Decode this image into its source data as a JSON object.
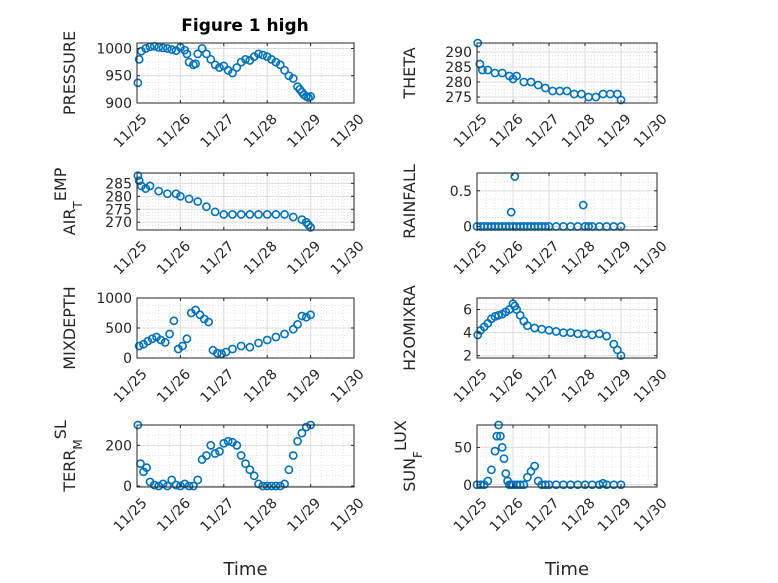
{
  "figure": {
    "title": "Figure 1 high"
  },
  "chart_data": [
    {
      "type": "scatter",
      "ylabel": "PRESSURE",
      "xlabel": "",
      "xlim": [
        0,
        5
      ],
      "ylim": [
        900,
        1010
      ],
      "yticks": [
        900,
        950,
        1000
      ],
      "xtick_labels": [
        "11/25",
        "11/26",
        "11/27",
        "11/28",
        "11/29",
        "11/30"
      ],
      "grid": true,
      "series": [
        {
          "x": [
            0.02,
            0.05,
            0.1,
            0.2,
            0.3,
            0.4,
            0.5,
            0.6,
            0.7,
            0.8,
            0.9,
            1.0,
            1.1,
            1.15,
            1.2,
            1.3,
            1.35,
            1.4,
            1.5,
            1.6,
            1.7,
            1.8,
            1.9,
            2.0,
            2.1,
            2.2,
            2.3,
            2.4,
            2.5,
            2.6,
            2.7,
            2.8,
            2.9,
            3.0,
            3.1,
            3.2,
            3.3,
            3.4,
            3.5,
            3.6,
            3.7,
            3.75,
            3.8,
            3.85,
            3.9,
            3.95,
            4.0
          ],
          "values": [
            937,
            980,
            995,
            1000,
            1003,
            1004,
            1002,
            1001,
            1000,
            998,
            996,
            1002,
            997,
            990,
            975,
            970,
            972,
            990,
            1000,
            990,
            980,
            970,
            965,
            968,
            960,
            955,
            965,
            975,
            980,
            978,
            985,
            990,
            988,
            985,
            980,
            975,
            970,
            960,
            950,
            945,
            930,
            925,
            920,
            915,
            912,
            910,
            912
          ]
        }
      ]
    },
    {
      "type": "scatter",
      "ylabel": "THETA",
      "xlabel": "",
      "xlim": [
        0,
        5
      ],
      "ylim": [
        273,
        293
      ],
      "yticks": [
        275,
        280,
        285,
        290
      ],
      "xtick_labels": [
        "11/25",
        "11/26",
        "11/27",
        "11/28",
        "11/29",
        "11/30"
      ],
      "grid": true,
      "series": [
        {
          "x": [
            0.02,
            0.08,
            0.15,
            0.3,
            0.5,
            0.7,
            0.9,
            1.0,
            1.1,
            1.3,
            1.5,
            1.7,
            1.9,
            2.1,
            2.3,
            2.5,
            2.7,
            2.9,
            3.1,
            3.3,
            3.5,
            3.7,
            3.9,
            4.0
          ],
          "values": [
            293,
            286,
            284,
            284,
            283,
            283,
            282,
            281,
            282,
            280,
            280,
            279,
            278,
            277,
            277,
            277,
            276,
            276,
            275,
            275,
            276,
            276,
            276,
            274
          ]
        }
      ]
    },
    {
      "type": "scatter",
      "ylabel": "AIR_TEMP",
      "xlabel": "",
      "xlim": [
        0,
        5
      ],
      "ylim": [
        267,
        289
      ],
      "yticks": [
        270,
        275,
        280,
        285
      ],
      "xtick_labels": [
        "11/25",
        "11/26",
        "11/27",
        "11/28",
        "11/29",
        "11/30"
      ],
      "grid": true,
      "series": [
        {
          "x": [
            0.02,
            0.05,
            0.1,
            0.2,
            0.3,
            0.5,
            0.7,
            0.9,
            1.0,
            1.2,
            1.4,
            1.6,
            1.8,
            2.0,
            2.2,
            2.4,
            2.6,
            2.8,
            3.0,
            3.2,
            3.4,
            3.6,
            3.8,
            3.9,
            3.95,
            4.0
          ],
          "values": [
            288,
            286,
            284,
            283,
            284,
            282,
            281,
            281,
            280,
            279,
            278,
            276,
            274,
            273,
            273,
            273,
            273,
            273,
            273,
            273,
            273,
            272,
            271,
            270,
            269,
            268
          ]
        }
      ]
    },
    {
      "type": "scatter",
      "ylabel": "RAINFALL",
      "xlabel": "",
      "xlim": [
        0,
        5
      ],
      "ylim": [
        -0.05,
        0.75
      ],
      "yticks": [
        0,
        0.5
      ],
      "xtick_labels": [
        "11/25",
        "11/26",
        "11/27",
        "11/28",
        "11/29",
        "11/30"
      ],
      "grid": true,
      "series": [
        {
          "x": [
            0.0,
            0.1,
            0.2,
            0.3,
            0.4,
            0.5,
            0.6,
            0.7,
            0.8,
            0.9,
            0.95,
            1.0,
            1.05,
            1.1,
            1.2,
            1.3,
            1.4,
            1.5,
            1.6,
            1.7,
            1.8,
            1.9,
            2.0,
            2.2,
            2.4,
            2.6,
            2.8,
            2.95,
            3.0,
            3.1,
            3.2,
            3.4,
            3.6,
            3.8,
            4.0
          ],
          "values": [
            0,
            0,
            0,
            0,
            0,
            0,
            0,
            0,
            0,
            0,
            0.2,
            0,
            0.7,
            0,
            0,
            0,
            0,
            0,
            0,
            0,
            0,
            0,
            0,
            0,
            0,
            0,
            0,
            0.3,
            0,
            0,
            0,
            0,
            0,
            0,
            0
          ]
        }
      ]
    },
    {
      "type": "scatter",
      "ylabel": "MIXDEPTH",
      "xlabel": "",
      "xlim": [
        0,
        5
      ],
      "ylim": [
        0,
        1000
      ],
      "yticks": [
        0,
        500,
        1000
      ],
      "xtick_labels": [
        "11/25",
        "11/26",
        "11/27",
        "11/28",
        "11/29",
        "11/30"
      ],
      "grid": true,
      "series": [
        {
          "x": [
            0.05,
            0.15,
            0.25,
            0.35,
            0.45,
            0.55,
            0.65,
            0.75,
            0.85,
            0.95,
            1.05,
            1.15,
            1.25,
            1.35,
            1.45,
            1.55,
            1.65,
            1.75,
            1.85,
            1.95,
            2.05,
            2.2,
            2.4,
            2.6,
            2.8,
            3.0,
            3.2,
            3.4,
            3.6,
            3.7,
            3.8,
            3.9,
            4.0
          ],
          "values": [
            200,
            230,
            280,
            320,
            350,
            300,
            260,
            400,
            620,
            150,
            200,
            320,
            750,
            800,
            720,
            650,
            600,
            130,
            80,
            70,
            100,
            150,
            200,
            180,
            250,
            300,
            350,
            400,
            480,
            560,
            700,
            680,
            720
          ]
        }
      ]
    },
    {
      "type": "scatter",
      "ylabel": "H2OMIXRA",
      "xlabel": "",
      "xlim": [
        0,
        5
      ],
      "ylim": [
        1.8,
        7
      ],
      "yticks": [
        2,
        4,
        6
      ],
      "xtick_labels": [
        "11/25",
        "11/26",
        "11/27",
        "11/28",
        "11/29",
        "11/30"
      ],
      "grid": true,
      "series": [
        {
          "x": [
            0.02,
            0.1,
            0.2,
            0.3,
            0.4,
            0.5,
            0.6,
            0.7,
            0.8,
            0.9,
            1.0,
            1.05,
            1.1,
            1.2,
            1.3,
            1.4,
            1.6,
            1.8,
            2.0,
            2.2,
            2.4,
            2.6,
            2.8,
            3.0,
            3.2,
            3.4,
            3.6,
            3.8,
            3.9,
            4.0
          ],
          "values": [
            3.8,
            4.2,
            4.5,
            4.8,
            5.2,
            5.4,
            5.5,
            5.6,
            5.8,
            6.0,
            6.5,
            6.3,
            6.0,
            5.5,
            5.0,
            4.6,
            4.4,
            4.3,
            4.2,
            4.1,
            4.0,
            4.0,
            3.9,
            3.9,
            3.8,
            3.9,
            3.7,
            3.0,
            2.5,
            2.0
          ]
        }
      ]
    },
    {
      "type": "scatter",
      "ylabel": "TERR_MSL",
      "xlabel": "Time",
      "xlim": [
        0,
        5
      ],
      "ylim": [
        -5,
        300
      ],
      "yticks": [
        0,
        200
      ],
      "xtick_labels": [
        "11/25",
        "11/26",
        "11/27",
        "11/28",
        "11/29",
        "11/30"
      ],
      "grid": true,
      "series": [
        {
          "x": [
            0.02,
            0.08,
            0.15,
            0.22,
            0.3,
            0.4,
            0.5,
            0.6,
            0.7,
            0.8,
            0.9,
            1.0,
            1.1,
            1.2,
            1.3,
            1.4,
            1.5,
            1.6,
            1.7,
            1.8,
            1.9,
            2.0,
            2.1,
            2.2,
            2.3,
            2.4,
            2.5,
            2.6,
            2.7,
            2.8,
            2.9,
            3.0,
            3.1,
            3.2,
            3.3,
            3.4,
            3.5,
            3.6,
            3.7,
            3.8,
            3.9,
            4.0
          ],
          "values": [
            300,
            110,
            70,
            90,
            20,
            5,
            0,
            10,
            0,
            30,
            5,
            0,
            10,
            0,
            0,
            30,
            130,
            150,
            200,
            160,
            170,
            210,
            220,
            215,
            200,
            150,
            110,
            80,
            50,
            10,
            0,
            0,
            0,
            0,
            0,
            10,
            80,
            150,
            220,
            260,
            290,
            300
          ]
        }
      ]
    },
    {
      "type": "scatter",
      "ylabel": "SUN_FLUX",
      "xlabel": "Time",
      "xlim": [
        0,
        5
      ],
      "ylim": [
        -3,
        80
      ],
      "yticks": [
        0,
        50
      ],
      "xtick_labels": [
        "11/25",
        "11/26",
        "11/27",
        "11/28",
        "11/29",
        "11/30"
      ],
      "grid": true,
      "series": [
        {
          "x": [
            0.0,
            0.1,
            0.2,
            0.3,
            0.4,
            0.5,
            0.55,
            0.6,
            0.65,
            0.7,
            0.75,
            0.8,
            0.85,
            0.9,
            0.95,
            1.0,
            1.1,
            1.2,
            1.3,
            1.4,
            1.5,
            1.6,
            1.7,
            1.8,
            1.9,
            2.0,
            2.2,
            2.4,
            2.6,
            2.8,
            3.0,
            3.2,
            3.4,
            3.5,
            3.6,
            3.8,
            4.0
          ],
          "values": [
            0,
            0,
            0,
            5,
            20,
            45,
            65,
            80,
            65,
            50,
            35,
            15,
            5,
            0,
            0,
            0,
            0,
            0,
            0,
            10,
            18,
            25,
            5,
            0,
            0,
            0,
            0,
            0,
            0,
            0,
            0,
            0,
            0,
            2,
            0,
            0,
            0
          ]
        }
      ]
    }
  ]
}
